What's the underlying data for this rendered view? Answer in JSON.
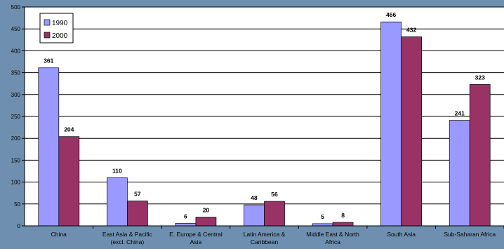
{
  "chart_data": {
    "type": "bar",
    "categories": [
      [
        "China"
      ],
      [
        "East Asia & Pacific",
        "(excl. China)"
      ],
      [
        "E. Europe & Central",
        "Asia"
      ],
      [
        "Latin America &",
        "Caribbean"
      ],
      [
        "Middle East & North",
        "Africa"
      ],
      [
        "South Asia"
      ],
      [
        "Sub-Saharan Africa"
      ]
    ],
    "series": [
      {
        "name": "1990",
        "values": [
          361,
          110,
          6,
          48,
          5,
          466,
          241
        ],
        "color": "#9999ff"
      },
      {
        "name": "2000",
        "values": [
          204,
          57,
          20,
          56,
          8,
          432,
          323
        ],
        "color": "#993366"
      }
    ],
    "ylim": [
      0,
      500
    ],
    "yticks": [
      0,
      50,
      100,
      150,
      200,
      250,
      300,
      350,
      400,
      450,
      500
    ],
    "title": "",
    "xlabel": "",
    "ylabel": "",
    "grid": true,
    "legend": "top-left",
    "background_color": "#6e8fb0",
    "plot_background": "#ffffff"
  }
}
